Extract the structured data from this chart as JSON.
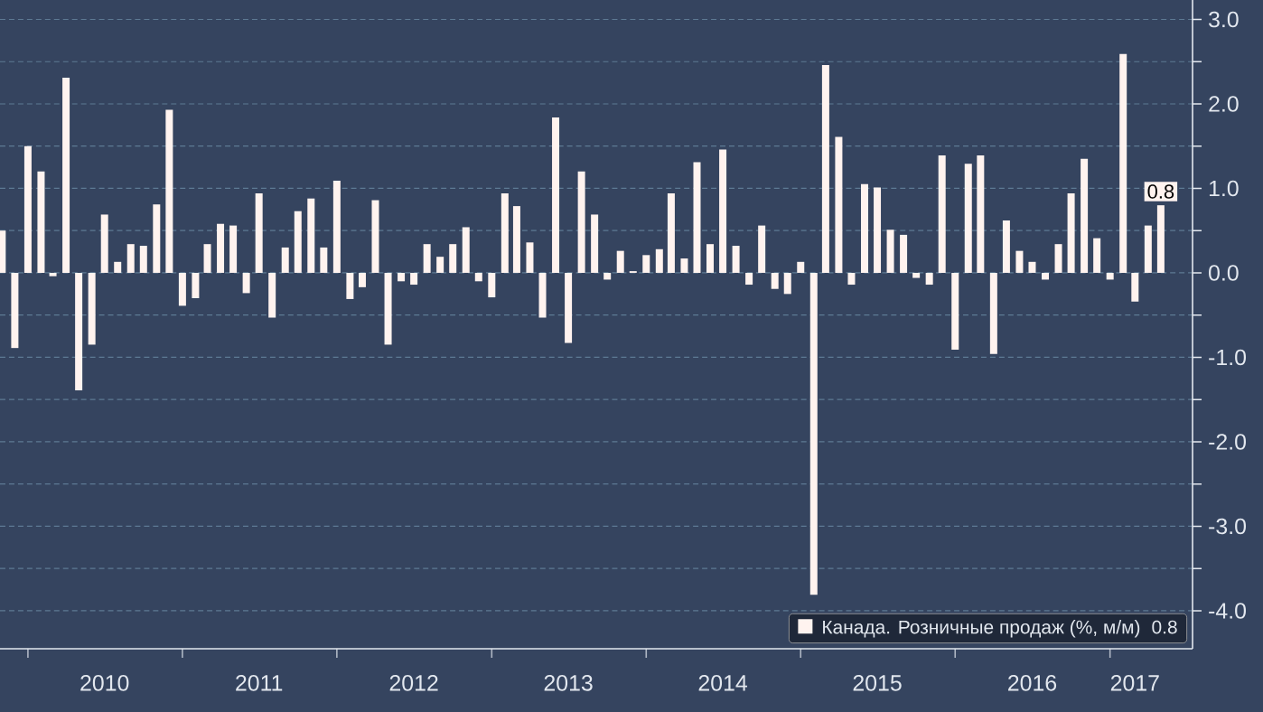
{
  "chart_data": {
    "type": "bar",
    "x": [
      "2009-11",
      "2009-12",
      "2010-01",
      "2010-02",
      "2010-03",
      "2010-04",
      "2010-05",
      "2010-06",
      "2010-07",
      "2010-08",
      "2010-09",
      "2010-10",
      "2010-11",
      "2010-12",
      "2011-01",
      "2011-02",
      "2011-03",
      "2011-04",
      "2011-05",
      "2011-06",
      "2011-07",
      "2011-08",
      "2011-09",
      "2011-10",
      "2011-11",
      "2011-12",
      "2012-01",
      "2012-02",
      "2012-03",
      "2012-04",
      "2012-05",
      "2012-06",
      "2012-07",
      "2012-08",
      "2012-09",
      "2012-10",
      "2012-11",
      "2012-12",
      "2013-01",
      "2013-02",
      "2013-03",
      "2013-04",
      "2013-05",
      "2013-06",
      "2013-07",
      "2013-08",
      "2013-09",
      "2013-10",
      "2013-11",
      "2013-12",
      "2014-01",
      "2014-02",
      "2014-03",
      "2014-04",
      "2014-05",
      "2014-06",
      "2014-07",
      "2014-08",
      "2014-09",
      "2014-10",
      "2014-11",
      "2014-12",
      "2015-01",
      "2015-02",
      "2015-03",
      "2015-04",
      "2015-05",
      "2015-06",
      "2015-07",
      "2015-08",
      "2015-09",
      "2015-10",
      "2015-11",
      "2015-12",
      "2016-01",
      "2016-02",
      "2016-03",
      "2016-04",
      "2016-05",
      "2016-06",
      "2016-07",
      "2016-08",
      "2016-09",
      "2016-10",
      "2016-11",
      "2016-12",
      "2017-01",
      "2017-02",
      "2017-03",
      "2017-04",
      "2017-05"
    ],
    "series": [
      {
        "name": "Канада. Розничные продаж (%, м/м)",
        "color": "#fff3ef",
        "values": [
          0.5,
          -0.89,
          1.5,
          1.2,
          -0.04,
          2.31,
          -1.39,
          -0.85,
          0.69,
          0.13,
          0.34,
          0.32,
          0.81,
          1.93,
          -0.39,
          -0.3,
          0.34,
          0.58,
          0.56,
          -0.24,
          0.94,
          -0.53,
          0.3,
          0.73,
          0.88,
          0.3,
          1.09,
          -0.31,
          -0.17,
          0.86,
          -0.85,
          -0.1,
          -0.14,
          0.34,
          0.19,
          0.34,
          0.54,
          -0.1,
          -0.29,
          0.94,
          0.79,
          0.36,
          -0.53,
          1.84,
          -0.83,
          1.2,
          0.69,
          -0.08,
          0.26,
          0.02,
          0.21,
          0.28,
          0.94,
          0.17,
          1.31,
          0.34,
          1.46,
          0.32,
          -0.14,
          0.56,
          -0.19,
          -0.25,
          0.13,
          -3.81,
          2.46,
          1.61,
          -0.14,
          1.05,
          1.01,
          0.51,
          0.45,
          -0.06,
          -0.14,
          1.39,
          -0.91,
          1.29,
          1.39,
          -0.96,
          0.62,
          0.26,
          0.13,
          -0.08,
          0.34,
          0.94,
          1.35,
          0.41,
          -0.08,
          2.59,
          -0.34,
          0.56,
          0.8
        ],
        "value_labels": [
          null,
          null,
          null,
          null,
          null,
          null,
          null,
          null,
          null,
          null,
          null,
          null,
          null,
          null,
          null,
          null,
          null,
          null,
          null,
          null,
          null,
          null,
          null,
          null,
          null,
          null,
          null,
          null,
          null,
          null,
          null,
          null,
          null,
          null,
          null,
          null,
          null,
          null,
          null,
          null,
          null,
          null,
          null,
          null,
          null,
          null,
          null,
          null,
          null,
          null,
          null,
          null,
          null,
          null,
          null,
          null,
          null,
          null,
          null,
          null,
          null,
          null,
          null,
          null,
          null,
          null,
          null,
          null,
          null,
          null,
          null,
          null,
          null,
          null,
          null,
          null,
          null,
          null,
          null,
          null,
          null,
          null,
          null,
          null,
          null,
          null,
          null,
          null,
          null,
          null,
          "0.8"
        ]
      }
    ],
    "xlim": [
      "2009-10-27",
      "2017-07-15"
    ],
    "xticks": [
      {
        "value": "2010-01",
        "label": null
      },
      {
        "value": "2010-07",
        "label": "2010"
      },
      {
        "value": "2011-01",
        "label": null
      },
      {
        "value": "2011-07",
        "label": "2011"
      },
      {
        "value": "2012-01",
        "label": null
      },
      {
        "value": "2012-07",
        "label": "2012"
      },
      {
        "value": "2013-01",
        "label": null
      },
      {
        "value": "2013-07",
        "label": "2013"
      },
      {
        "value": "2014-01",
        "label": null
      },
      {
        "value": "2014-07",
        "label": "2014"
      },
      {
        "value": "2015-01",
        "label": null
      },
      {
        "value": "2015-07",
        "label": "2015"
      },
      {
        "value": "2016-01",
        "label": null
      },
      {
        "value": "2016-07",
        "label": "2016"
      },
      {
        "value": "2017-01",
        "label": null
      },
      {
        "value": "2017-03",
        "label": "2017"
      }
    ],
    "ylim": [
      -4.45,
      3.23
    ],
    "yticks": [
      {
        "value": -4,
        "label": "-4.0"
      },
      {
        "value": -3.5,
        "label": null
      },
      {
        "value": -3,
        "label": "-3.0"
      },
      {
        "value": -2.5,
        "label": null
      },
      {
        "value": -2,
        "label": "-2.0"
      },
      {
        "value": -1.5,
        "label": null
      },
      {
        "value": -1,
        "label": "-1.0"
      },
      {
        "value": -0.5,
        "label": null
      },
      {
        "value": 0,
        "label": "0.0"
      },
      {
        "value": 0.5,
        "label": null
      },
      {
        "value": 1,
        "label": "1.0"
      },
      {
        "value": 1.5,
        "label": null
      },
      {
        "value": 2,
        "label": "2.0"
      },
      {
        "value": 2.5,
        "label": null
      },
      {
        "value": 3,
        "label": "3.0"
      }
    ],
    "grid": "y",
    "legend": "bottom right"
  }
}
